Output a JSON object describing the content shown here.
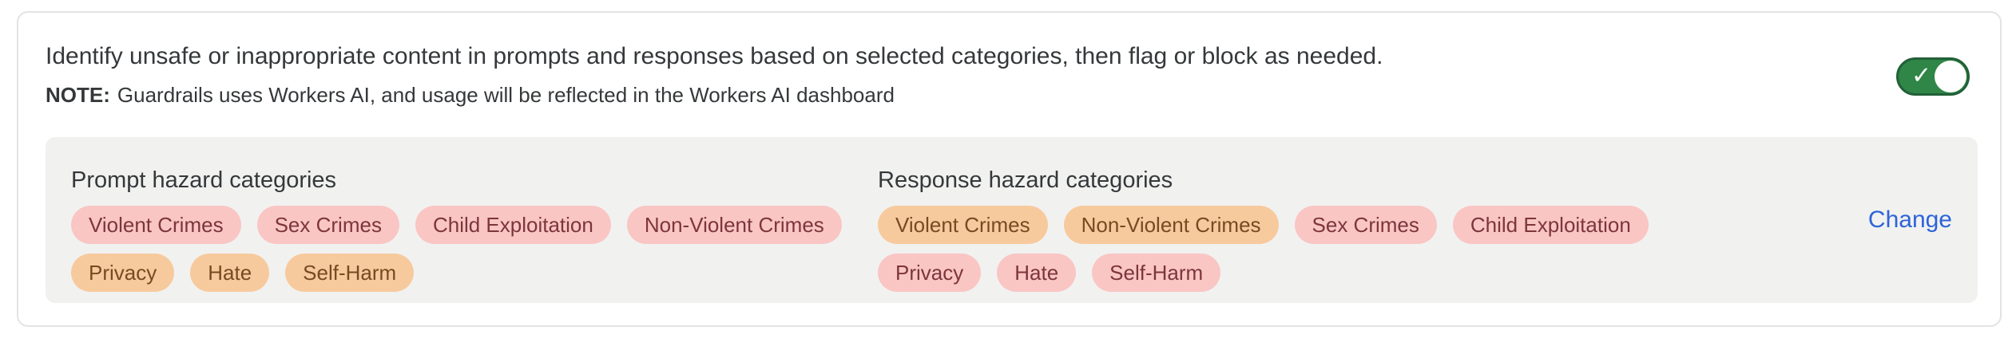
{
  "header": {
    "description": "Identify unsafe or inappropriate content in prompts and responses based on selected categories, then flag or block as needed.",
    "note_label": "NOTE:",
    "note_text": "Guardrails uses Workers AI, and usage will be reflected in the Workers AI dashboard",
    "toggle": {
      "state": "on"
    }
  },
  "categories": {
    "prompt": {
      "title": "Prompt hazard categories",
      "rows": [
        [
          {
            "label": "Violent Crimes",
            "variant": "red"
          },
          {
            "label": "Sex Crimes",
            "variant": "red"
          },
          {
            "label": "Child Exploitation",
            "variant": "red"
          },
          {
            "label": "Non-Violent Crimes",
            "variant": "red"
          }
        ],
        [
          {
            "label": "Privacy",
            "variant": "orange"
          },
          {
            "label": "Hate",
            "variant": "orange"
          },
          {
            "label": "Self-Harm",
            "variant": "orange"
          }
        ]
      ]
    },
    "response": {
      "title": "Response hazard categories",
      "rows": [
        [
          {
            "label": "Violent Crimes",
            "variant": "orange"
          },
          {
            "label": "Non-Violent Crimes",
            "variant": "orange"
          },
          {
            "label": "Sex Crimes",
            "variant": "red"
          },
          {
            "label": "Child Exploitation",
            "variant": "red"
          }
        ],
        [
          {
            "label": "Privacy",
            "variant": "red"
          },
          {
            "label": "Hate",
            "variant": "red"
          },
          {
            "label": "Self-Harm",
            "variant": "red"
          }
        ]
      ]
    },
    "change_label": "Change"
  },
  "colors": {
    "text": "#35383a",
    "card_border": "#e3e3e3",
    "panel_bg": "#f1f1f0",
    "red_bg": "#f9c6c4",
    "red_text": "#7d353c",
    "orange_bg": "#f7ca9d",
    "orange_text": "#784a22",
    "toggle_green": "#2f8646",
    "toggle_green_border": "#226038",
    "link_blue": "#2d64d8"
  }
}
